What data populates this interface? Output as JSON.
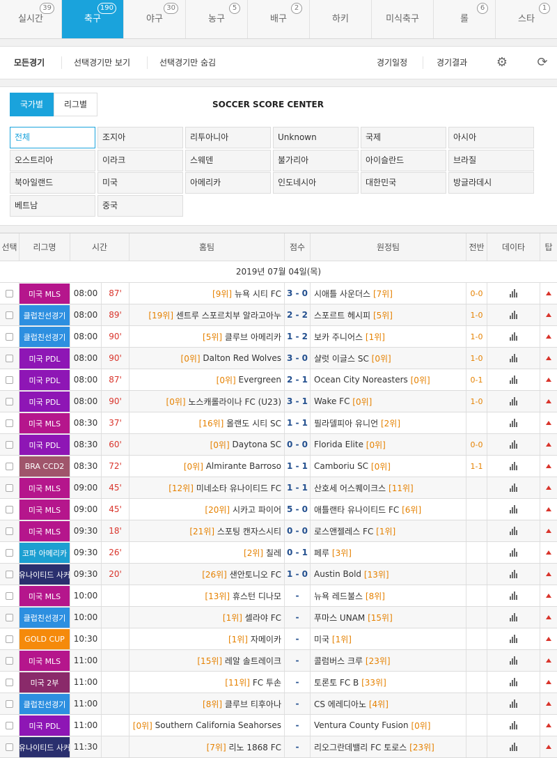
{
  "tabs": [
    {
      "label": "실시간",
      "count": "39"
    },
    {
      "label": "축구",
      "count": "190"
    },
    {
      "label": "야구",
      "count": "30"
    },
    {
      "label": "농구",
      "count": "5"
    },
    {
      "label": "배구",
      "count": "2"
    },
    {
      "label": "하키",
      "count": ""
    },
    {
      "label": "미식축구",
      "count": ""
    },
    {
      "label": "롤",
      "count": "6"
    },
    {
      "label": "스타",
      "count": "1"
    }
  ],
  "active_tab": 1,
  "filterbar": {
    "all": "모든경기",
    "show_selected": "선택경기만 보기",
    "hide_selected": "선택경기만 숨김",
    "schedule": "경기일정",
    "results": "경기결과",
    "settings_icon": "gear-icon",
    "refresh_icon": "refresh-icon"
  },
  "country_panel": {
    "by_country": "국가별",
    "by_league": "리그별",
    "title": "SOCCER SCORE CENTER",
    "countries": [
      "전체",
      "조지아",
      "리투아니아",
      "Unknown",
      "국제",
      "아시아",
      "오스트리아",
      "이라크",
      "스웨덴",
      "불가리아",
      "아이슬란드",
      "브라질",
      "북아일랜드",
      "미국",
      "아메리카",
      "인도네시아",
      "대한민국",
      "방글라데시",
      "베트남",
      "중국"
    ]
  },
  "table": {
    "headers": {
      "select": "선택",
      "league": "리그명",
      "time": "시간",
      "home": "홈팀",
      "score": "점수",
      "away": "원정팀",
      "half": "전반",
      "data": "데이타",
      "tip": "탑"
    },
    "date": "2019년 07월 04일(목)",
    "rows": [
      {
        "league": "미국 MLS",
        "color": "#b5168c",
        "time": "08:00",
        "min": "87'",
        "home_rank": "[9위]",
        "home": "뉴욕 시티 FC",
        "score": "3 - 0",
        "away": "시애틀 사운더스",
        "away_rank": "[7위]",
        "half": "0-0"
      },
      {
        "league": "클럽친선경기",
        "color": "#2d8fe0",
        "time": "08:00",
        "min": "89'",
        "home_rank": "[19위]",
        "home": "센트루 스포르치부 알라고아누",
        "score": "2 - 2",
        "away": "스포르트 헤시피",
        "away_rank": "[5위]",
        "half": "1-0"
      },
      {
        "league": "클럽친선경기",
        "color": "#2d8fe0",
        "time": "08:00",
        "min": "90'",
        "home_rank": "[5위]",
        "home": "클루브 아메리카",
        "score": "1 - 2",
        "away": "보카 주니어스",
        "away_rank": "[1위]",
        "half": "1-0"
      },
      {
        "league": "미국 PDL",
        "color": "#8e16b5",
        "time": "08:00",
        "min": "90'",
        "home_rank": "[0위]",
        "home": "Dalton Red Wolves",
        "score": "3 - 0",
        "away": "샬럿 이글스 SC",
        "away_rank": "[0위]",
        "half": "1-0"
      },
      {
        "league": "미국 PDL",
        "color": "#8e16b5",
        "time": "08:00",
        "min": "87'",
        "home_rank": "[0위]",
        "home": "Evergreen",
        "score": "2 - 1",
        "away": "Ocean City Noreasters",
        "away_rank": "[0위]",
        "half": "0-1"
      },
      {
        "league": "미국 PDL",
        "color": "#8e16b5",
        "time": "08:00",
        "min": "90'",
        "home_rank": "[0위]",
        "home": "노스캐롤라이나 FC (U23)",
        "score": "3 - 1",
        "away": "Wake FC",
        "away_rank": "[0위]",
        "half": "1-0"
      },
      {
        "league": "미국 MLS",
        "color": "#b5168c",
        "time": "08:30",
        "min": "37'",
        "home_rank": "[16위]",
        "home": "올랜도 시티 SC",
        "score": "1 - 1",
        "away": "필라델피아 유니언",
        "away_rank": "[2위]",
        "half": ""
      },
      {
        "league": "미국 PDL",
        "color": "#8e16b5",
        "time": "08:30",
        "min": "60'",
        "home_rank": "[0위]",
        "home": "Daytona SC",
        "score": "0 - 0",
        "away": "Florida Elite",
        "away_rank": "[0위]",
        "half": "0-0"
      },
      {
        "league": "BRA CCD2",
        "color": "#a0556b",
        "time": "08:30",
        "min": "72'",
        "home_rank": "[0위]",
        "home": "Almirante Barroso",
        "score": "1 - 1",
        "away": "Camboriu SC",
        "away_rank": "[0위]",
        "half": "1-1"
      },
      {
        "league": "미국 MLS",
        "color": "#b5168c",
        "time": "09:00",
        "min": "45'",
        "home_rank": "[12위]",
        "home": "미네소타 유나이티드 FC",
        "score": "1 - 1",
        "away": "산호세 어스퀘이크스",
        "away_rank": "[11위]",
        "half": ""
      },
      {
        "league": "미국 MLS",
        "color": "#b5168c",
        "time": "09:00",
        "min": "45'",
        "home_rank": "[20위]",
        "home": "시카고 파이어",
        "score": "5 - 0",
        "away": "애틀랜타 유나이티드 FC",
        "away_rank": "[6위]",
        "half": ""
      },
      {
        "league": "미국 MLS",
        "color": "#b5168c",
        "time": "09:30",
        "min": "18'",
        "home_rank": "[21위]",
        "home": "스포팅 캔자스시티",
        "score": "0 - 0",
        "away": "로스앤젤레스 FC",
        "away_rank": "[1위]",
        "half": ""
      },
      {
        "league": "코파 아메리카",
        "color": "#1c9fd1",
        "time": "09:30",
        "min": "26'",
        "home_rank": "[2위]",
        "home": "칠레",
        "score": "0 - 1",
        "away": "페루",
        "away_rank": "[3위]",
        "half": ""
      },
      {
        "league": "유나이티드 사커",
        "color": "#2a2f6e",
        "time": "09:30",
        "min": "20'",
        "home_rank": "[26위]",
        "home": "샌안토니오 FC",
        "score": "1 - 0",
        "away": "Austin Bold",
        "away_rank": "[13위]",
        "half": ""
      },
      {
        "league": "미국 MLS",
        "color": "#b5168c",
        "time": "10:00",
        "min": "",
        "home_rank": "[13위]",
        "home": "휴스턴 디나모",
        "score": "-",
        "away": "뉴욕 레드불스",
        "away_rank": "[8위]",
        "half": ""
      },
      {
        "league": "클럽친선경기",
        "color": "#2d8fe0",
        "time": "10:00",
        "min": "",
        "home_rank": "[1위]",
        "home": "셀라야 FC",
        "score": "-",
        "away": "푸마스 UNAM",
        "away_rank": "[15위]",
        "half": ""
      },
      {
        "league": "GOLD CUP",
        "color": "#f58a0b",
        "time": "10:30",
        "min": "",
        "home_rank": "[1위]",
        "home": "자메이카",
        "score": "-",
        "away": "미국",
        "away_rank": "[1위]",
        "half": ""
      },
      {
        "league": "미국 MLS",
        "color": "#b5168c",
        "time": "11:00",
        "min": "",
        "home_rank": "[15위]",
        "home": "레알 솔트레이크",
        "score": "-",
        "away": "콜럼버스 크루",
        "away_rank": "[23위]",
        "half": ""
      },
      {
        "league": "미국 2부",
        "color": "#8a2a6a",
        "time": "11:00",
        "min": "",
        "home_rank": "[11위]",
        "home": "FC 투손",
        "score": "-",
        "away": "토론토 FC B",
        "away_rank": "[33위]",
        "half": ""
      },
      {
        "league": "클럽친선경기",
        "color": "#2d8fe0",
        "time": "11:00",
        "min": "",
        "home_rank": "[8위]",
        "home": "클루브 티후아나",
        "score": "-",
        "away": "CS 에레디아노",
        "away_rank": "[4위]",
        "half": ""
      },
      {
        "league": "미국 PDL",
        "color": "#8e16b5",
        "time": "11:00",
        "min": "",
        "home_rank": "[0위]",
        "home": "Southern California Seahorses",
        "score": "-",
        "away": "Ventura County Fusion",
        "away_rank": "[0위]",
        "half": ""
      },
      {
        "league": "유나이티드 사커",
        "color": "#2a2f6e",
        "time": "11:30",
        "min": "",
        "home_rank": "[7위]",
        "home": "리노 1868 FC",
        "score": "-",
        "away": "리오그란데밸리 FC 토로스",
        "away_rank": "[23위]",
        "half": ""
      }
    ]
  }
}
